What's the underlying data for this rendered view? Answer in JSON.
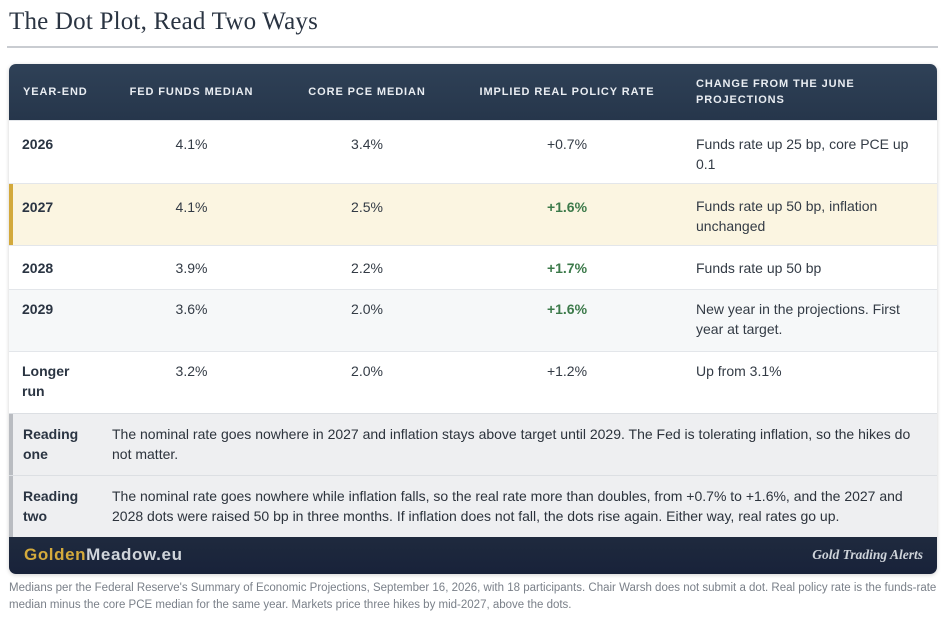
{
  "title": "The Dot Plot, Read Two Ways",
  "table": {
    "headers": [
      "YEAR-END",
      "FED FUNDS MEDIAN",
      "CORE PCE MEDIAN",
      "IMPLIED REAL POLICY RATE",
      "CHANGE FROM THE JUNE PROJECTIONS"
    ],
    "rows": [
      {
        "year": "2026",
        "funds": "4.1%",
        "pce": "3.4%",
        "real": "+0.7%",
        "change": "Funds rate up 25 bp, core PCE up 0.1",
        "highlight": false
      },
      {
        "year": "2027",
        "funds": "4.1%",
        "pce": "2.5%",
        "real": "+1.6%",
        "change": "Funds rate up 50 bp, inflation unchanged",
        "highlight": true
      },
      {
        "year": "2028",
        "funds": "3.9%",
        "pce": "2.2%",
        "real": "+1.7%",
        "change": "Funds rate up 50 bp",
        "highlight": false
      },
      {
        "year": "2029",
        "funds": "3.6%",
        "pce": "2.0%",
        "real": "+1.6%",
        "change": "New year in the projections. First year at target.",
        "highlight": false
      },
      {
        "year": "Longer run",
        "funds": "3.2%",
        "pce": "2.0%",
        "real": "+1.2%",
        "change": "Up from 3.1%",
        "highlight": false
      }
    ],
    "emphasis_color": "#3c7a4a",
    "highlight_color": "#d3a93b"
  },
  "readings": [
    {
      "label": "Reading one",
      "text": "The nominal rate goes nowhere in 2027 and inflation stays above target until 2029. The Fed is tolerating inflation, so the hikes do not matter."
    },
    {
      "label": "Reading two",
      "text": "The nominal rate goes nowhere while inflation falls, so the real rate more than doubles, from +0.7% to +1.6%, and the 2027 and 2028 dots were raised 50 bp in three months. If inflation does not fall, the dots rise again. Either way, real rates go up."
    }
  ],
  "footer": {
    "brand_part1": "Golden",
    "brand_part2": "Meadow.eu",
    "tagline": "Gold Trading Alerts",
    "brand_color": "#d4aa3c"
  },
  "note": "Medians per the Federal Reserve's Summary of Economic Projections, September 16, 2026, with 18 participants. Chair Warsh does not submit a dot. Real policy rate is the funds-rate median minus the core PCE median for the same year. Markets price three hikes by mid-2027, above the dots."
}
